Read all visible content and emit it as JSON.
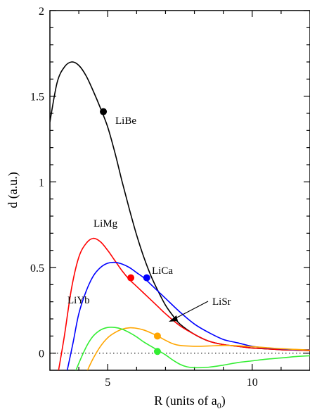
{
  "chart_data": {
    "type": "line",
    "xlabel": "R (units of a",
    "xlabel_sub": "0",
    "xlabel_end": ")",
    "ylabel": "d (a.u.)",
    "xlim": [
      3,
      12
    ],
    "ylim": [
      -0.1,
      2
    ],
    "x_ticks": [
      5,
      10
    ],
    "y_ticks": [
      0,
      0.5,
      1,
      1.5,
      2
    ],
    "y_tick_labels": [
      "0",
      "0.5",
      "1",
      "1.5",
      "2"
    ],
    "x_tick_labels": [
      "5",
      "10"
    ],
    "zero_line": "dotted",
    "series": [
      {
        "name": "LiBe",
        "color": "#000000",
        "x": [
          3,
          3.25,
          3.5,
          3.75,
          4,
          4.25,
          4.5,
          4.75,
          5,
          5.25,
          5.5,
          5.75,
          6,
          6.25,
          6.5,
          6.75,
          7,
          7.25,
          7.5,
          8,
          8.5,
          9,
          9.5,
          10,
          10.5,
          11,
          11.5,
          12
        ],
        "y": [
          1.35,
          1.58,
          1.67,
          1.7,
          1.68,
          1.62,
          1.53,
          1.43,
          1.32,
          1.17,
          1.0,
          0.84,
          0.69,
          0.56,
          0.45,
          0.36,
          0.28,
          0.22,
          0.17,
          0.11,
          0.07,
          0.05,
          0.04,
          0.03,
          0.025,
          0.02,
          0.018,
          0.015
        ],
        "marker": {
          "x": 4.85,
          "y": 1.41,
          "label": "LiBe"
        }
      },
      {
        "name": "LiMg",
        "color": "#ff0000",
        "x": [
          3.3,
          3.5,
          3.75,
          4,
          4.25,
          4.5,
          4.75,
          5,
          5.25,
          5.5,
          5.75,
          6,
          6.25,
          6.5,
          6.75,
          7,
          7.5,
          8,
          8.5,
          9,
          9.5,
          10,
          10.5,
          11,
          11.5,
          12
        ],
        "y": [
          -0.1,
          0.1,
          0.38,
          0.56,
          0.64,
          0.67,
          0.65,
          0.6,
          0.54,
          0.48,
          0.43,
          0.39,
          0.35,
          0.31,
          0.27,
          0.23,
          0.16,
          0.11,
          0.07,
          0.05,
          0.04,
          0.03,
          0.025,
          0.02,
          0.018,
          0.015
        ],
        "marker": {
          "x": 5.8,
          "y": 0.44,
          "label": "LiMg"
        }
      },
      {
        "name": "LiCa",
        "color": "#0000ff",
        "x": [
          3.6,
          3.8,
          4,
          4.25,
          4.5,
          4.75,
          5,
          5.25,
          5.5,
          5.75,
          6,
          6.25,
          6.5,
          6.75,
          7,
          7.5,
          8,
          8.5,
          9,
          9.5,
          10,
          10.5,
          11,
          11.5,
          12
        ],
        "y": [
          -0.1,
          0.06,
          0.23,
          0.36,
          0.45,
          0.5,
          0.525,
          0.53,
          0.52,
          0.5,
          0.47,
          0.44,
          0.4,
          0.36,
          0.32,
          0.24,
          0.17,
          0.12,
          0.08,
          0.06,
          0.04,
          0.03,
          0.025,
          0.02,
          0.02
        ],
        "marker": {
          "x": 6.35,
          "y": 0.44,
          "label": "LiCa"
        }
      },
      {
        "name": "LiSr",
        "color": "#ffa500",
        "x": [
          4.3,
          4.5,
          4.75,
          5,
          5.25,
          5.5,
          5.75,
          6,
          6.25,
          6.5,
          6.75,
          7,
          7.25,
          7.5,
          8,
          8.5,
          9,
          9.5,
          10,
          10.5,
          11,
          11.5,
          12
        ],
        "y": [
          -0.1,
          -0.03,
          0.04,
          0.09,
          0.12,
          0.14,
          0.148,
          0.145,
          0.135,
          0.118,
          0.098,
          0.075,
          0.055,
          0.045,
          0.04,
          0.042,
          0.045,
          0.043,
          0.038,
          0.032,
          0.026,
          0.022,
          0.018
        ],
        "marker": {
          "x": 6.72,
          "y": 0.1,
          "label": "LiSr"
        }
      },
      {
        "name": "LiYb",
        "color": "#33ee33",
        "x": [
          3.9,
          4.1,
          4.3,
          4.5,
          4.75,
          5,
          5.25,
          5.5,
          5.75,
          6,
          6.25,
          6.5,
          6.75,
          7,
          7.25,
          7.5,
          7.75,
          8,
          8.5,
          9,
          9.5,
          10,
          10.5,
          11,
          11.5,
          12
        ],
        "y": [
          -0.1,
          -0.02,
          0.05,
          0.1,
          0.135,
          0.15,
          0.15,
          0.14,
          0.12,
          0.095,
          0.065,
          0.04,
          0.015,
          -0.01,
          -0.04,
          -0.065,
          -0.08,
          -0.085,
          -0.082,
          -0.07,
          -0.055,
          -0.045,
          -0.035,
          -0.028,
          -0.02,
          -0.015
        ],
        "marker": {
          "x": 6.72,
          "y": 0.01,
          "label": "LiYb"
        }
      }
    ]
  }
}
